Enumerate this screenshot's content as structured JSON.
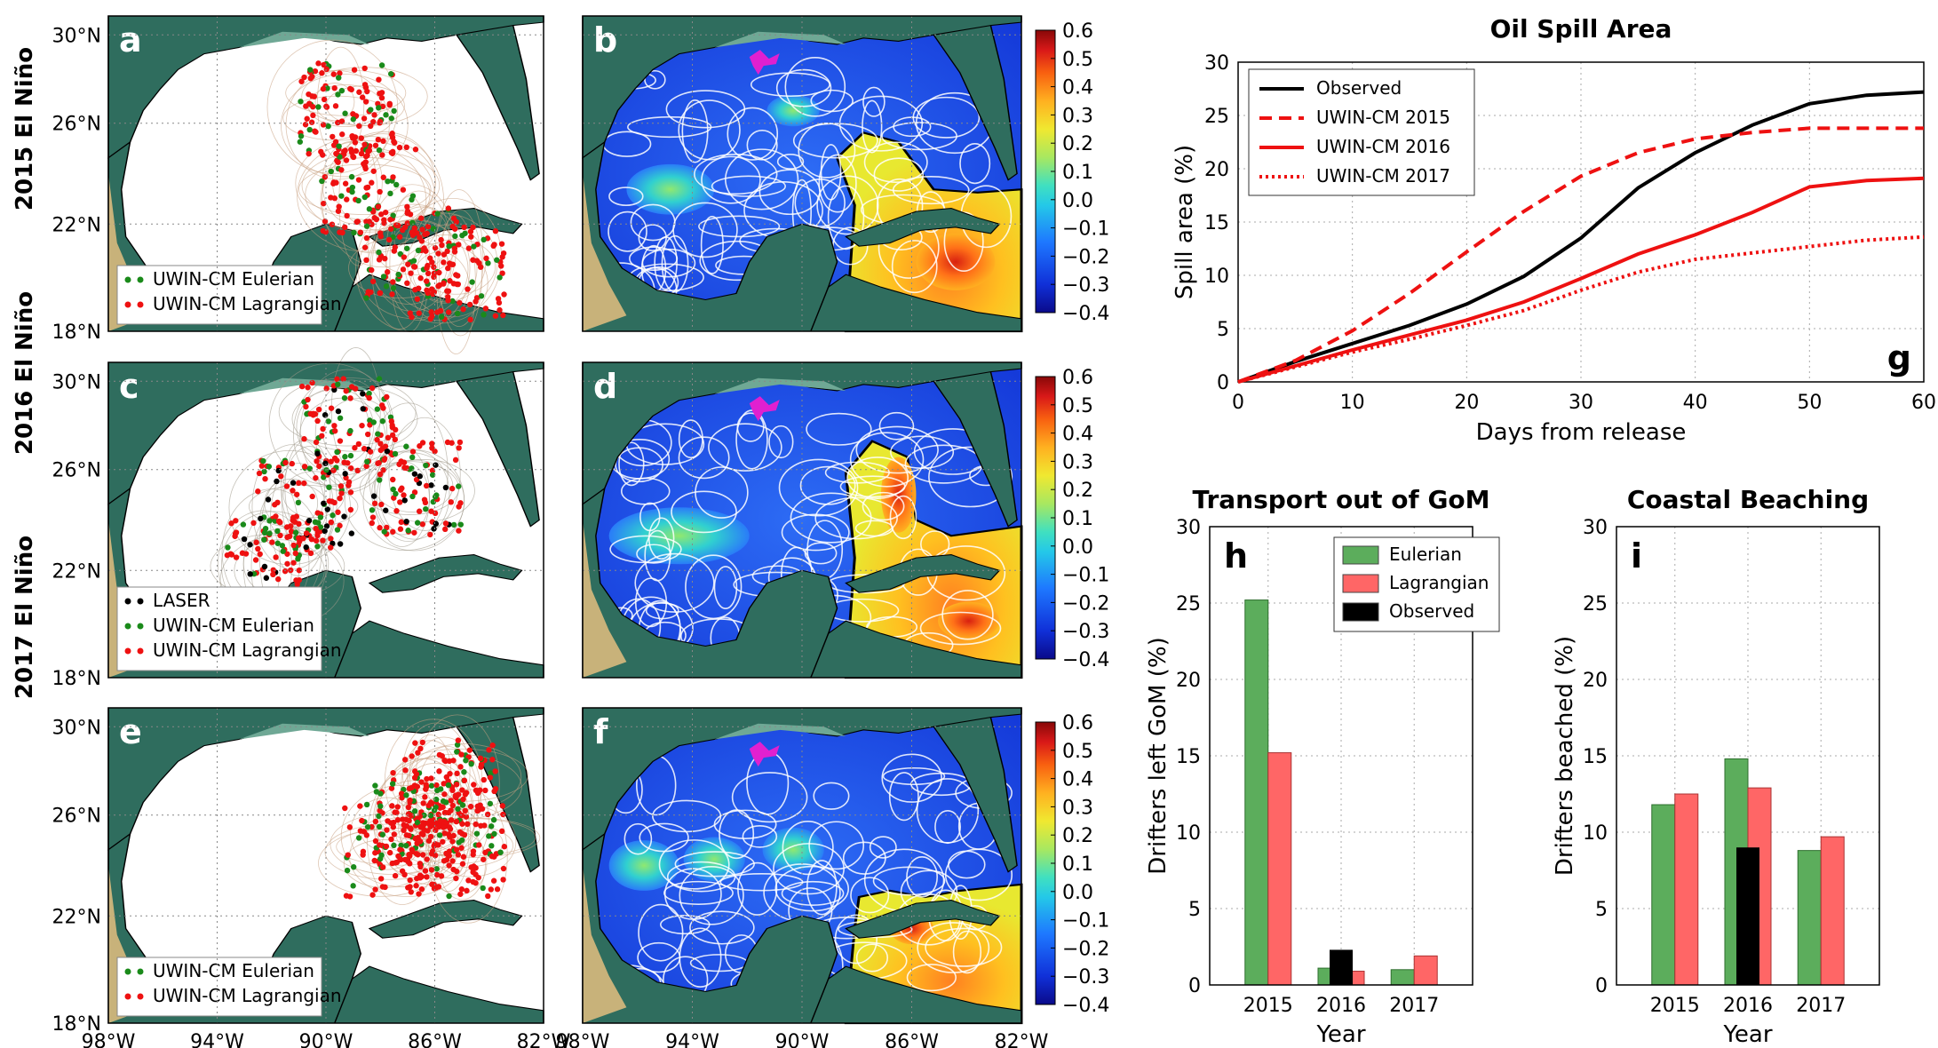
{
  "rows": [
    {
      "label": "2015 El Niño"
    },
    {
      "label": "2016 El Niño"
    },
    {
      "label": "2017 El Niño"
    }
  ],
  "map_axes": {
    "lat_ticks": [
      "30°N",
      "26°N",
      "22°N",
      "18°N"
    ],
    "lon_ticks": [
      "98°W",
      "94°W",
      "90°W",
      "86°W",
      "82°W"
    ]
  },
  "trajectory_panels": [
    {
      "letter": "a",
      "legend": [
        {
          "label": "UWIN-CM Eulerian",
          "color": "#1a8a1a"
        },
        {
          "label": "UWIN-CM Lagrangian",
          "color": "#ee1111"
        }
      ]
    },
    {
      "letter": "c",
      "legend": [
        {
          "label": "LASER",
          "color": "#000000"
        },
        {
          "label": "UWIN-CM Eulerian",
          "color": "#1a8a1a"
        },
        {
          "label": "UWIN-CM Lagrangian",
          "color": "#ee1111"
        }
      ]
    },
    {
      "letter": "e",
      "legend": [
        {
          "label": "UWIN-CM Eulerian",
          "color": "#1a8a1a"
        },
        {
          "label": "UWIN-CM Lagrangian",
          "color": "#ee1111"
        }
      ]
    }
  ],
  "ssh_panels": [
    {
      "letter": "b"
    },
    {
      "letter": "d"
    },
    {
      "letter": "f"
    }
  ],
  "colorbar": {
    "ticks": [
      "0.6",
      "0.5",
      "0.4",
      "0.3",
      "0.2",
      "0.1",
      "0.0",
      "−0.1",
      "−0.2",
      "−0.3",
      "−0.4"
    ],
    "range": [
      -0.4,
      0.6
    ]
  },
  "chart_data": [
    {
      "type": "line",
      "letter": "g",
      "title": "Oil Spill Area",
      "xlabel": "Days from release",
      "ylabel": "Spill area (%)",
      "xlim": [
        0,
        60
      ],
      "ylim": [
        0,
        30
      ],
      "xticks": [
        "0",
        "10",
        "20",
        "30",
        "40",
        "50",
        "60"
      ],
      "yticks": [
        "0",
        "5",
        "10",
        "15",
        "20",
        "25",
        "30"
      ],
      "grid": true,
      "legend_position": "top-left",
      "series": [
        {
          "name": "Observed",
          "color": "#000000",
          "dash": "solid",
          "x": [
            0,
            5,
            10,
            15,
            20,
            25,
            30,
            35,
            40,
            45,
            50,
            55,
            60
          ],
          "y": [
            0,
            1.9,
            3.6,
            5.3,
            7.3,
            9.9,
            13.5,
            18.2,
            21.5,
            24.1,
            26.1,
            26.9,
            27.2
          ]
        },
        {
          "name": "UWIN-CM 2015",
          "color": "#ee1111",
          "dash": "dashed",
          "x": [
            0,
            5,
            10,
            15,
            20,
            25,
            30,
            35,
            40,
            45,
            50,
            55,
            60
          ],
          "y": [
            0,
            2.0,
            4.8,
            8.3,
            12.2,
            16.0,
            19.3,
            21.5,
            22.8,
            23.4,
            23.8,
            23.8,
            23.8
          ]
        },
        {
          "name": "UWIN-CM 2016",
          "color": "#ee1111",
          "dash": "solid",
          "x": [
            0,
            5,
            10,
            15,
            20,
            25,
            30,
            35,
            40,
            45,
            50,
            55,
            60
          ],
          "y": [
            0,
            1.5,
            3.0,
            4.4,
            5.8,
            7.5,
            9.7,
            12.0,
            13.8,
            15.9,
            18.3,
            18.9,
            19.1
          ]
        },
        {
          "name": "UWIN-CM 2017",
          "color": "#ee1111",
          "dash": "dotted",
          "x": [
            0,
            5,
            10,
            15,
            20,
            25,
            30,
            35,
            40,
            45,
            50,
            55,
            60
          ],
          "y": [
            0,
            1.4,
            2.8,
            4.0,
            5.3,
            6.7,
            8.6,
            10.3,
            11.5,
            12.1,
            12.7,
            13.3,
            13.6
          ]
        }
      ]
    },
    {
      "type": "bar",
      "letter": "h",
      "title": "Transport out of GoM",
      "xlabel": "Year",
      "ylabel": "Drifters left GoM (%)",
      "categories": [
        "2015",
        "2016",
        "2017"
      ],
      "ylim": [
        0,
        30
      ],
      "yticks": [
        "0",
        "5",
        "10",
        "15",
        "20",
        "25",
        "30"
      ],
      "grid": true,
      "legend_position": "top-right",
      "series": [
        {
          "name": "Eulerian",
          "color": "#5cad5c",
          "values": [
            25.2,
            1.1,
            1.0
          ]
        },
        {
          "name": "Lagrangian",
          "color": "#ff6666",
          "values": [
            15.2,
            0.9,
            1.9
          ]
        },
        {
          "name": "Observed",
          "color": "#000000",
          "values": [
            null,
            2.3,
            null
          ]
        }
      ]
    },
    {
      "type": "bar",
      "letter": "i",
      "title": "Coastal Beaching",
      "xlabel": "Year",
      "ylabel": "Drifters beached (%)",
      "categories": [
        "2015",
        "2016",
        "2017"
      ],
      "ylim": [
        0,
        30
      ],
      "yticks": [
        "0",
        "5",
        "10",
        "15",
        "20",
        "25",
        "30"
      ],
      "grid": true,
      "series": [
        {
          "name": "Eulerian",
          "color": "#5cad5c",
          "values": [
            11.8,
            14.8,
            8.8
          ]
        },
        {
          "name": "Lagrangian",
          "color": "#ff6666",
          "values": [
            12.5,
            12.9,
            9.7
          ]
        },
        {
          "name": "Observed",
          "color": "#000000",
          "values": [
            null,
            9.0,
            null
          ]
        }
      ]
    }
  ]
}
